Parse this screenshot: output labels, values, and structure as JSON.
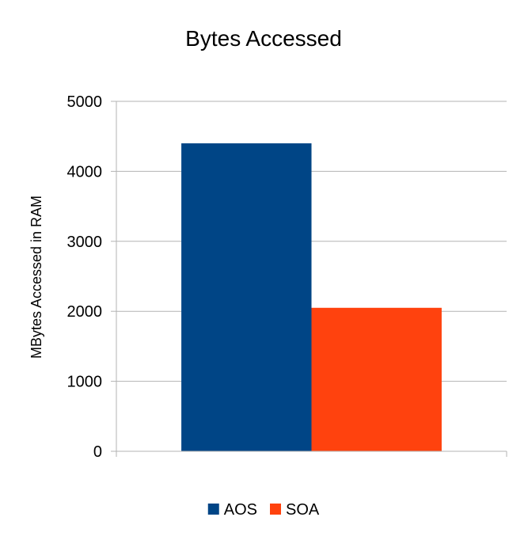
{
  "chart_data": {
    "type": "bar",
    "title": "Bytes Accessed",
    "xlabel": "",
    "ylabel": "MBytes Accessed in RAM",
    "ylim": [
      0,
      5000
    ],
    "yticks": [
      0,
      1000,
      2000,
      3000,
      4000,
      5000
    ],
    "grid": true,
    "legend_position": "bottom",
    "categories": [
      ""
    ],
    "series": [
      {
        "name": "AOS",
        "values": [
          4400
        ],
        "color": "#004586"
      },
      {
        "name": "SOA",
        "values": [
          2050
        ],
        "color": "#ff420e"
      }
    ]
  }
}
